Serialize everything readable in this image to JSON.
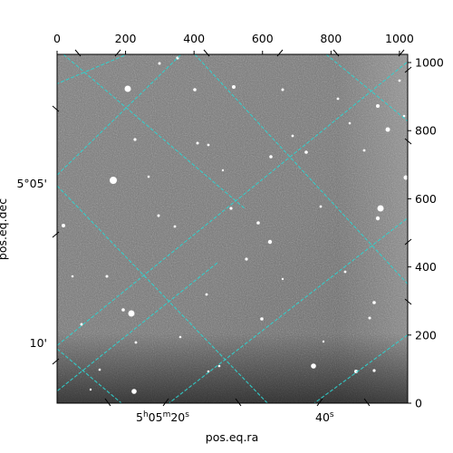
{
  "chart_data": {
    "type": "image",
    "title": "",
    "xlabel": "pos.eq.ra",
    "ylabel": "pos.eq.dec",
    "pixel_axes": {
      "x": {
        "ticks": [
          0,
          200,
          400,
          600,
          800,
          1000
        ],
        "range": [
          0,
          1024
        ]
      },
      "y": {
        "ticks": [
          0,
          200,
          400,
          600,
          800,
          1000
        ],
        "range": [
          0,
          1024
        ]
      }
    },
    "world_axes": {
      "ra_ticks": [
        {
          "label_h": "5",
          "label_m": "05",
          "label_s": "20",
          "text": "5h05m20s"
        },
        {
          "label": "40",
          "unit": "s",
          "text": "40s"
        }
      ],
      "dec_ticks": [
        "5°05'",
        "10'"
      ]
    },
    "grid": true,
    "grid_color": "#2fd3cf",
    "colormap": "gray"
  }
}
